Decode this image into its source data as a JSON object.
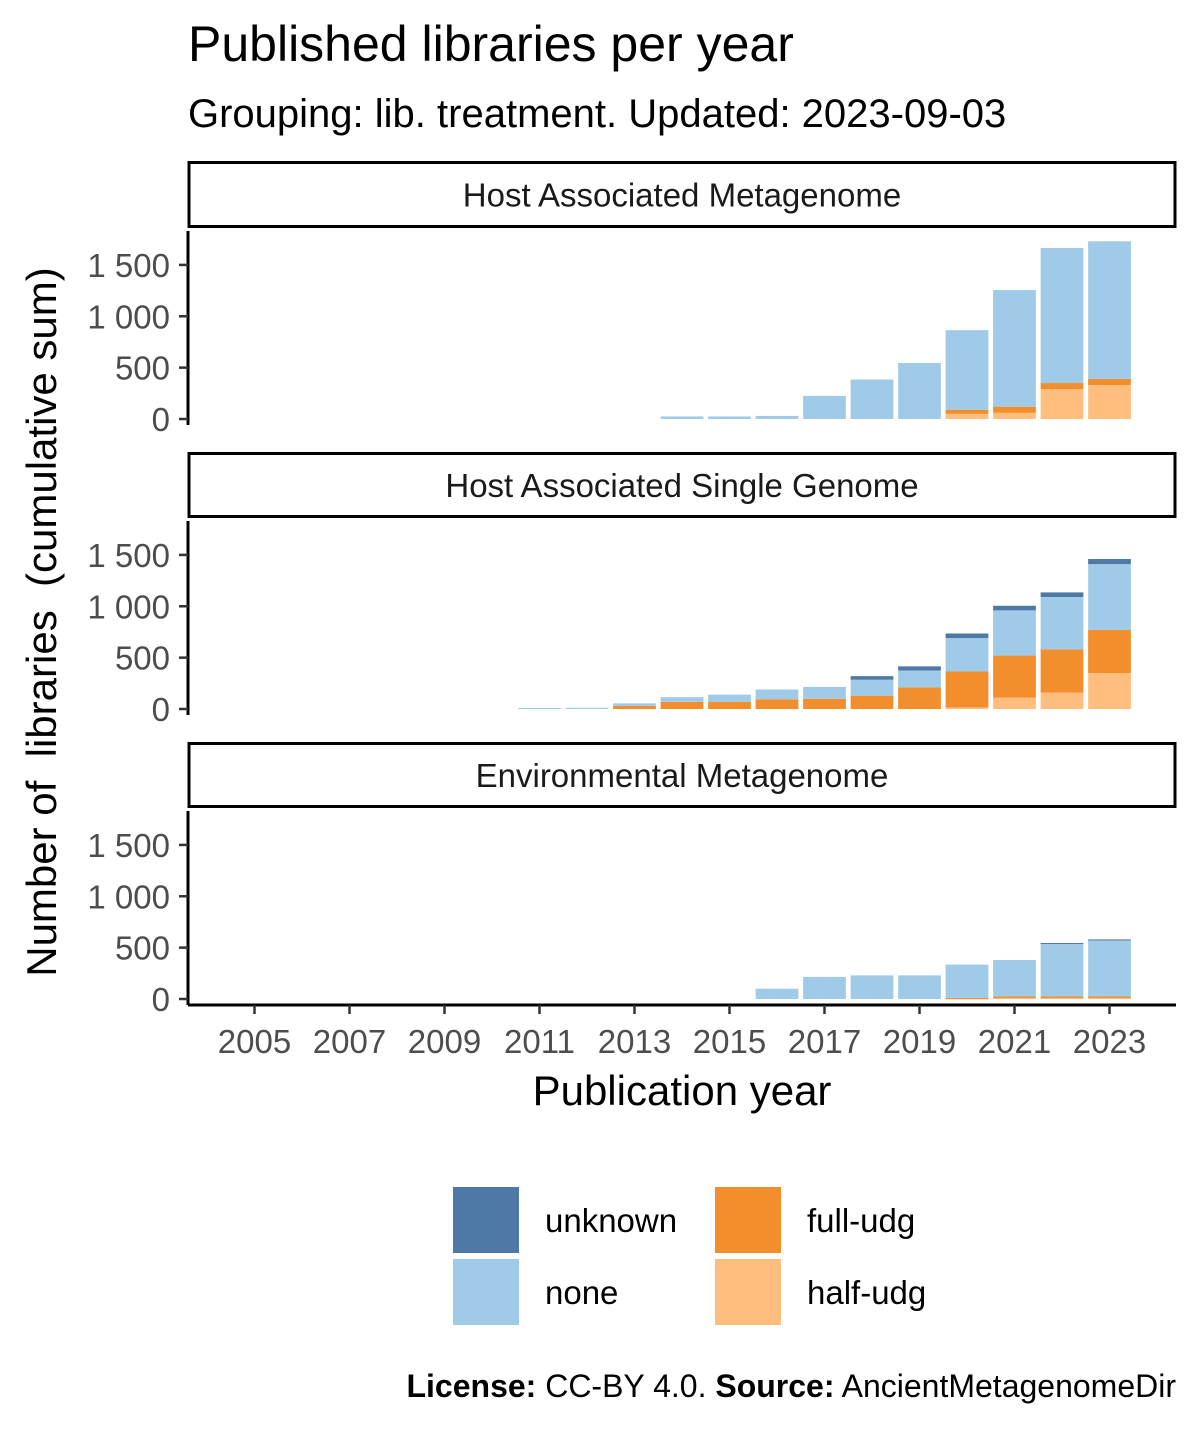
{
  "chart_data": {
    "type": "bar",
    "stacked": true,
    "title": "Published libraries per year",
    "subtitle": "Grouping: lib. treatment. Updated: 2023-09-03",
    "xlabel": "Publication year",
    "ylabel": "Number of  libraries  (cumulative sum)",
    "x_ticks": [
      "2005",
      "2007",
      "2009",
      "2011",
      "2013",
      "2015",
      "2017",
      "2019",
      "2021",
      "2023"
    ],
    "y_ticks": [
      0,
      500,
      1000,
      1500
    ],
    "y_tick_labels": [
      "0",
      "500",
      "1 000",
      "1 500"
    ],
    "xlim": [
      2003.6,
      2024.4
    ],
    "ylim": [
      0,
      1830
    ],
    "grid": false,
    "legend_position": "bottom",
    "colors": {
      "unknown": "#4e79a7",
      "none": "#a0cbe8",
      "full-udg": "#f28e2b",
      "half-udg": "#ffbe7d"
    },
    "stack_order": [
      "half-udg",
      "full-udg",
      "none",
      "unknown"
    ],
    "legend": [
      {
        "label": "unknown",
        "key": "unknown"
      },
      {
        "label": "none",
        "key": "none"
      },
      {
        "label": "full-udg",
        "key": "full-udg"
      },
      {
        "label": "half-udg",
        "key": "half-udg"
      }
    ],
    "panels": [
      {
        "name": "Host Associated Metagenome",
        "x": [
          2014,
          2015,
          2016,
          2017,
          2018,
          2019,
          2020,
          2021,
          2022,
          2023
        ],
        "series": [
          {
            "name": "half-udg",
            "values": [
              0,
              0,
              0,
              0,
              0,
              0,
              50,
              60,
              290,
              330
            ]
          },
          {
            "name": "full-udg",
            "values": [
              0,
              0,
              0,
              0,
              0,
              0,
              40,
              60,
              60,
              60
            ]
          },
          {
            "name": "none",
            "values": [
              25,
              25,
              30,
              225,
              385,
              545,
              775,
              1135,
              1315,
              1340
            ]
          },
          {
            "name": "unknown",
            "values": [
              0,
              0,
              0,
              0,
              0,
              0,
              0,
              0,
              0,
              0
            ]
          }
        ]
      },
      {
        "name": "Host Associated Single Genome",
        "x": [
          2011,
          2012,
          2013,
          2014,
          2015,
          2016,
          2017,
          2018,
          2019,
          2020,
          2021,
          2022,
          2023
        ],
        "series": [
          {
            "name": "half-udg",
            "values": [
              0,
              0,
              0,
              0,
              0,
              0,
              0,
              0,
              0,
              15,
              110,
              160,
              350
            ]
          },
          {
            "name": "full-udg",
            "values": [
              0,
              0,
              30,
              70,
              70,
              95,
              100,
              130,
              210,
              350,
              410,
              420,
              420
            ]
          },
          {
            "name": "none",
            "values": [
              10,
              12,
              25,
              45,
              70,
              95,
              115,
              155,
              165,
              325,
              440,
              510,
              640
            ]
          },
          {
            "name": "unknown",
            "values": [
              0,
              0,
              0,
              0,
              0,
              0,
              0,
              35,
              40,
              45,
              45,
              45,
              50
            ]
          }
        ]
      },
      {
        "name": "Environmental Metagenome",
        "x": [
          2016,
          2017,
          2018,
          2019,
          2020,
          2021,
          2022,
          2023
        ],
        "series": [
          {
            "name": "half-udg",
            "values": [
              0,
              0,
              0,
              0,
              5,
              10,
              10,
              10
            ]
          },
          {
            "name": "full-udg",
            "values": [
              0,
              0,
              0,
              0,
              5,
              15,
              15,
              15
            ]
          },
          {
            "name": "none",
            "values": [
              100,
              215,
              230,
              230,
              325,
              355,
              515,
              550
            ]
          },
          {
            "name": "unknown",
            "values": [
              0,
              0,
              0,
              0,
              0,
              0,
              5,
              5
            ]
          }
        ]
      }
    ]
  },
  "caption": {
    "license_label": "License:",
    "license_value": " CC-BY 4.0. ",
    "source_label": "Source:",
    "source_value": " AncientMetagenomeDir"
  }
}
